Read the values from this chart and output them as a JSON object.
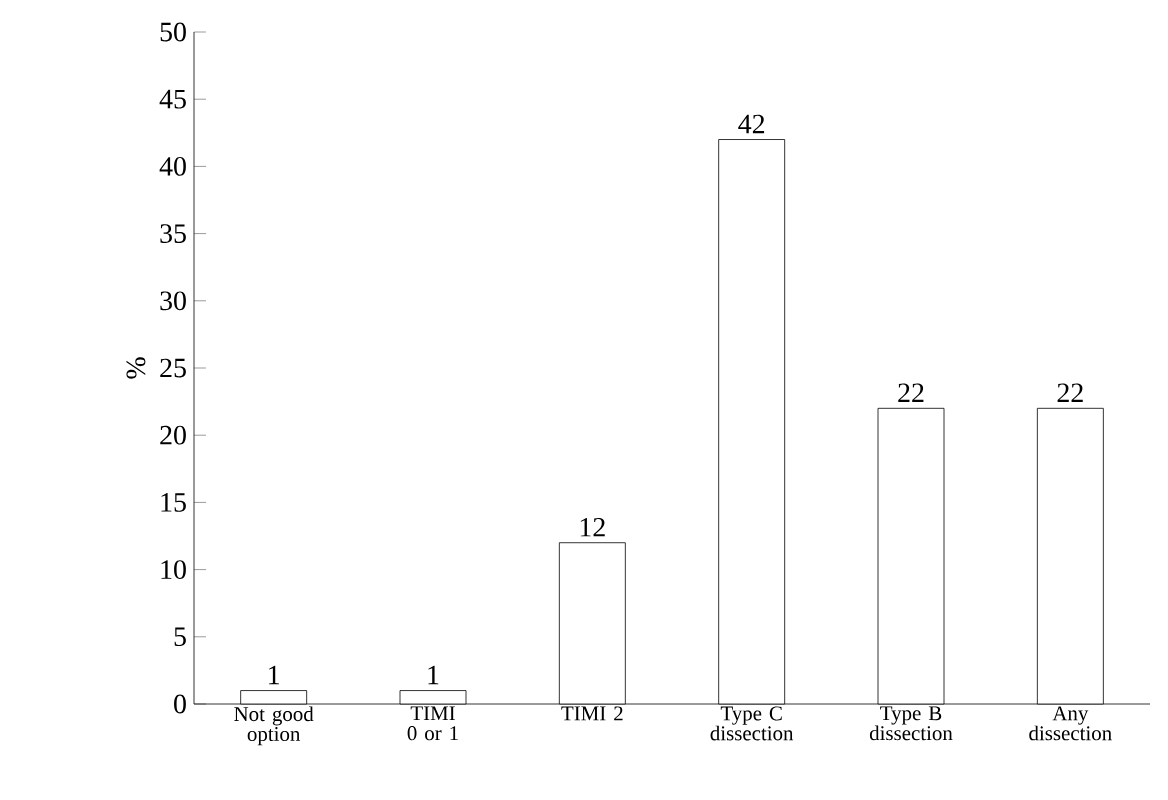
{
  "chart_data": {
    "type": "bar",
    "ylabel": "%",
    "categories": [
      "Not good option",
      "TIMI 0 or 1",
      "TIMI 2",
      "Type C dissection",
      "Type B dissection",
      "Any dissection"
    ],
    "values": [
      1,
      1,
      12,
      42,
      22,
      22
    ],
    "color": "#ffffff",
    "ylim": [
      0,
      50
    ],
    "yticks": [
      0,
      5,
      10,
      15,
      20,
      25,
      30,
      35,
      40,
      45,
      50
    ],
    "data_labels": true
  }
}
